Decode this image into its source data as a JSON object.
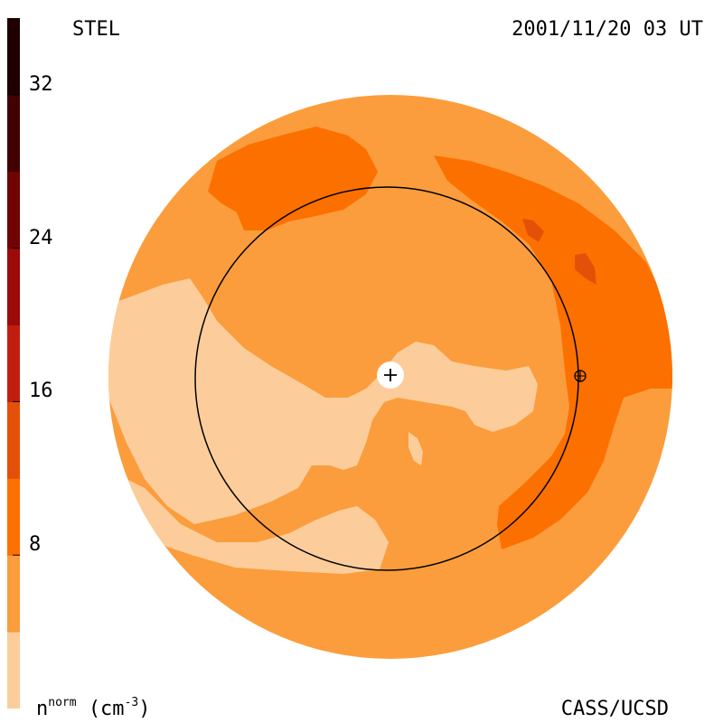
{
  "header": {
    "source": "STEL",
    "timestamp": "2001/11/20 03 UT"
  },
  "footer": {
    "credit": "CASS/UCSD",
    "units_main": "n",
    "units_sup": "norm",
    "units_unit": "(cm",
    "units_exp": "-3",
    "units_close": ")"
  },
  "colorbar": {
    "min": 0,
    "max": 36,
    "ticks": [
      {
        "value": 8,
        "label": "8"
      },
      {
        "value": 16,
        "label": "16"
      },
      {
        "value": 24,
        "label": "24"
      },
      {
        "value": 32,
        "label": "32"
      }
    ],
    "bands": [
      {
        "from": 0,
        "to": 4,
        "color": "#fccd9b"
      },
      {
        "from": 4,
        "to": 8,
        "color": "#fb9d3c"
      },
      {
        "from": 8,
        "to": 12,
        "color": "#fc7000"
      },
      {
        "from": 12,
        "to": 16,
        "color": "#e35108"
      },
      {
        "from": 16,
        "to": 20,
        "color": "#c21e0f"
      },
      {
        "from": 20,
        "to": 24,
        "color": "#9c0a0a"
      },
      {
        "from": 24,
        "to": 28,
        "color": "#700404"
      },
      {
        "from": 28,
        "to": 32,
        "color": "#430202"
      },
      {
        "from": 32,
        "to": 36,
        "color": "#1e0000"
      }
    ]
  },
  "map_colors": {
    "background": "#fb9d3c",
    "low": "#fccd9b",
    "mid": "#fc7000",
    "high": "#e35108",
    "orbit": "#000000",
    "sun": "#ffffff"
  }
}
